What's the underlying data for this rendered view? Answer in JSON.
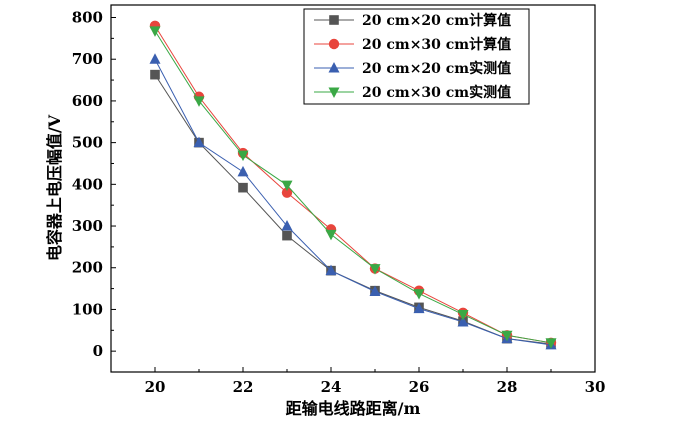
{
  "chart_data": {
    "type": "line",
    "xlabel": "距输电线路距离/m",
    "ylabel": "电容器上电压幅值/V",
    "xlim": [
      19,
      30
    ],
    "ylim": [
      -50,
      830
    ],
    "xticks": [
      20,
      22,
      24,
      26,
      28,
      30
    ],
    "yticks": [
      0,
      100,
      200,
      300,
      400,
      500,
      600,
      700,
      800
    ],
    "grid": false,
    "legend_position": "top-right",
    "x": [
      20,
      21,
      22,
      23,
      24,
      25,
      26,
      27,
      28,
      29
    ],
    "series": [
      {
        "name": "20 cm×20 cm计算值",
        "marker": "square",
        "color": "#555555",
        "values": [
          663,
          500,
          392,
          277,
          193,
          145,
          105,
          72,
          30,
          17
        ]
      },
      {
        "name": "20 cm×30 cm计算值",
        "marker": "circle",
        "color": "#e8453c",
        "values": [
          780,
          610,
          475,
          380,
          292,
          198,
          145,
          92,
          38,
          20
        ]
      },
      {
        "name": "20 cm×20 cm实测值",
        "marker": "triangle-up",
        "color": "#3a5fb0",
        "values": [
          700,
          500,
          430,
          300,
          193,
          143,
          102,
          70,
          30,
          15
        ]
      },
      {
        "name": "20 cm×30 cm实测值",
        "marker": "triangle-down",
        "color": "#3aa845",
        "values": [
          768,
          600,
          470,
          398,
          280,
          198,
          138,
          88,
          38,
          20
        ]
      }
    ]
  }
}
